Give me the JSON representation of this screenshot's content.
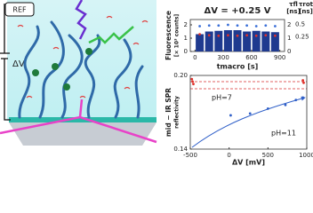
{
  "diagram": {
    "ref_label": "REF",
    "voltage_label": "ΔV"
  },
  "chart_data": [
    {
      "type": "bar",
      "title": "ΔV = +0.25 V",
      "x_label": "tmacro [s]",
      "y_label": [
        "Fluorescence",
        "[× 10³ counts]"
      ],
      "y2_label": [
        "τfl",
        "[ns]"
      ],
      "y3_label": [
        "τrot",
        "[ns]"
      ],
      "x": [
        50,
        150,
        250,
        350,
        450,
        550,
        650,
        750,
        850
      ],
      "series": [
        {
          "name": "Fluorescence",
          "color": "#1f3a8f",
          "values": [
            1.3,
            1.5,
            1.55,
            1.6,
            1.6,
            1.5,
            1.55,
            1.5,
            1.45
          ]
        },
        {
          "name": "τfl",
          "color": "#3a6fd8",
          "axis": "y2",
          "values": [
            1.9,
            1.95,
            1.95,
            2.0,
            1.95,
            1.95,
            1.9,
            1.95,
            1.9
          ]
        },
        {
          "name": "τrot",
          "color": "#e0302a",
          "axis": "y3",
          "values": [
            0.3,
            0.28,
            0.27,
            0.28,
            0.27,
            0.28,
            0.27,
            0.28,
            0.27
          ]
        }
      ],
      "xlim": [
        -50,
        950
      ],
      "xticks": [
        0,
        300,
        600,
        900
      ],
      "ylim": [
        0,
        2.4
      ],
      "yticks": [
        0,
        1,
        2
      ],
      "y2lim": [
        0,
        2.4
      ],
      "y2ticks": [
        0,
        1,
        2
      ],
      "y3lim": [
        -0.05,
        0.6
      ],
      "y3ticks": [
        0.25,
        0.5
      ]
    },
    {
      "type": "scatter",
      "x_label": "ΔV [mV]",
      "y_label": [
        "mid − IR SPR",
        "reflectivity"
      ],
      "annotations": [
        "pH=7",
        "pH=11"
      ],
      "series": [
        {
          "name": "pH=7",
          "color": "#e0302a",
          "x": [
            -480,
            -470,
            -460,
            950,
            960
          ],
          "values": [
            0.197,
            0.195,
            0.193,
            0.196,
            0.194
          ]
        },
        {
          "name": "pH=11",
          "color": "#2f5fc8",
          "x": [
            20,
            270,
            500,
            725,
            860,
            950
          ],
          "values": [
            0.1675,
            0.169,
            0.173,
            0.176,
            0.18,
            0.182
          ]
        }
      ],
      "xlim": [
        -500,
        1000
      ],
      "xticks": [
        -500,
        0,
        500,
        1000
      ],
      "ylim": [
        0.14,
        0.2
      ],
      "yticks": [
        0.14,
        {
          "value": 0.2,
          "label": "0.20"
        }
      ]
    }
  ]
}
